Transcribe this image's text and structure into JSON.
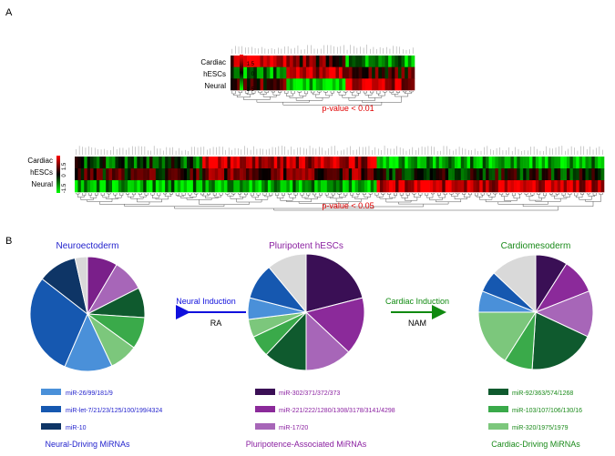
{
  "panel_a": {
    "letter": "A",
    "scale_ticks": [
      "1.5",
      "0",
      "-1.5"
    ],
    "heatmap_top": {
      "rows": [
        "Cardiac",
        "hESCs",
        "Neural"
      ],
      "pvalue_label": "p-value < 0.01"
    },
    "heatmap_bottom": {
      "rows": [
        "Cardiac",
        "hESCs",
        "Neural"
      ],
      "pvalue_label": "p-value < 0.05"
    }
  },
  "panel_b": {
    "letter": "B",
    "titles": {
      "neural": "Neuroectoderm",
      "pluri": "Pluripotent hESCs",
      "cardiac": "Cardiomesoderm"
    },
    "arrows": {
      "neural": {
        "label": "Neural Induction",
        "agent": "RA"
      },
      "cardiac": {
        "label": "Cardiac Induction",
        "agent": "NAM"
      }
    },
    "legend": {
      "neural": {
        "items": [
          "miR-26/99/181/9",
          "miR-let-7/21/23/125/100/199/4324",
          "miR-10"
        ],
        "caption": "Neural-Driving MiRNAs"
      },
      "pluri": {
        "items": [
          "miR-302/371/372/373",
          "miR-221/222/1280/1308/3178/3141/4298",
          "miR-17/20"
        ],
        "caption": "Pluripotence-Associated MiRNAs"
      },
      "cardiac": {
        "items": [
          "miR-92/363/574/1268",
          "miR-103/107/106/130/16",
          "miR-320/1975/1979"
        ],
        "caption": "Cardiac-Driving MiRNAs"
      }
    },
    "colors": {
      "neural_title": "#1f1fcc",
      "pluri_title": "#8a1fa0",
      "cardiac_title": "#1a8a1a",
      "neural_arrow": "#1010dd",
      "cardiac_arrow": "#108a10",
      "pvalue": "#e00000"
    }
  },
  "chart_data": [
    {
      "type": "heatmap",
      "title": "p-value < 0.01",
      "rows": [
        "Cardiac",
        "hESCs",
        "Neural"
      ],
      "color_scale": {
        "min": -1.5,
        "mid": 0,
        "max": 1.5,
        "low_color": "#00ff00",
        "mid_color": "#000000",
        "high_color": "#ff0000"
      }
    },
    {
      "type": "heatmap",
      "title": "p-value < 0.05",
      "rows": [
        "Cardiac",
        "hESCs",
        "Neural"
      ],
      "color_scale": {
        "min": -1.5,
        "mid": 0,
        "max": 1.5,
        "low_color": "#00ff00",
        "mid_color": "#000000",
        "high_color": "#ff0000"
      }
    },
    {
      "type": "pie",
      "title": "Neuroectoderm",
      "slices": [
        {
          "value": 8.5,
          "color": "#7a1f8a"
        },
        {
          "value": 9,
          "color": "#a766b8"
        },
        {
          "value": 8.5,
          "color": "#0f5a2e"
        },
        {
          "value": 9,
          "color": "#3aaa4a"
        },
        {
          "value": 8,
          "color": "#7cc77c"
        },
        {
          "value": 13.5,
          "color": "#4a90d9"
        },
        {
          "value": 29,
          "color": "#1658b0"
        },
        {
          "value": 11,
          "color": "#0e3566"
        },
        {
          "value": 3.5,
          "color": "#d9d9d9"
        }
      ]
    },
    {
      "type": "pie",
      "title": "Pluripotent hESCs",
      "slices": [
        {
          "value": 21,
          "color": "#3a0f55"
        },
        {
          "value": 16,
          "color": "#8b2a9a"
        },
        {
          "value": 13,
          "color": "#a766b8"
        },
        {
          "value": 12,
          "color": "#0f5a2e"
        },
        {
          "value": 6,
          "color": "#3aaa4a"
        },
        {
          "value": 5,
          "color": "#7cc77c"
        },
        {
          "value": 6,
          "color": "#4a90d9"
        },
        {
          "value": 10,
          "color": "#1658b0"
        },
        {
          "value": 11,
          "color": "#d9d9d9"
        }
      ]
    },
    {
      "type": "pie",
      "title": "Cardiomesoderm",
      "slices": [
        {
          "value": 9,
          "color": "#3a0f55"
        },
        {
          "value": 10,
          "color": "#8b2a9a"
        },
        {
          "value": 13,
          "color": "#a766b8"
        },
        {
          "value": 19,
          "color": "#0f5a2e"
        },
        {
          "value": 8,
          "color": "#3aaa4a"
        },
        {
          "value": 16,
          "color": "#7cc77c"
        },
        {
          "value": 6,
          "color": "#4a90d9"
        },
        {
          "value": 6,
          "color": "#1658b0"
        },
        {
          "value": 13,
          "color": "#d9d9d9"
        }
      ]
    }
  ]
}
